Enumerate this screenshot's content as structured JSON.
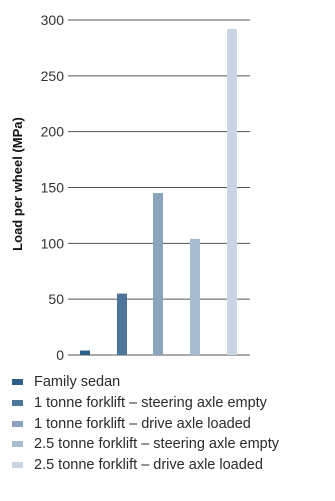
{
  "chart_data": {
    "type": "bar",
    "ylabel": "Load per wheel (MPa)",
    "xlabel": "",
    "ylim": [
      0,
      300
    ],
    "yticks": [
      0,
      50,
      100,
      150,
      200,
      250,
      300
    ],
    "grid": true,
    "legend_position": "bottom",
    "categories": [
      "Family sedan",
      "1 tonne forklift – steering axle empty",
      "1 tonne forklift – drive axle loaded",
      "2.5 tonne forklift – steering axle empty",
      "2.5 tonne forklift – drive axle loaded"
    ],
    "values": [
      4,
      55,
      145,
      104,
      292
    ],
    "colors": [
      "#2e5f86",
      "#4d7598",
      "#8aa4bd",
      "#a8bcd0",
      "#c9d5e2"
    ]
  }
}
